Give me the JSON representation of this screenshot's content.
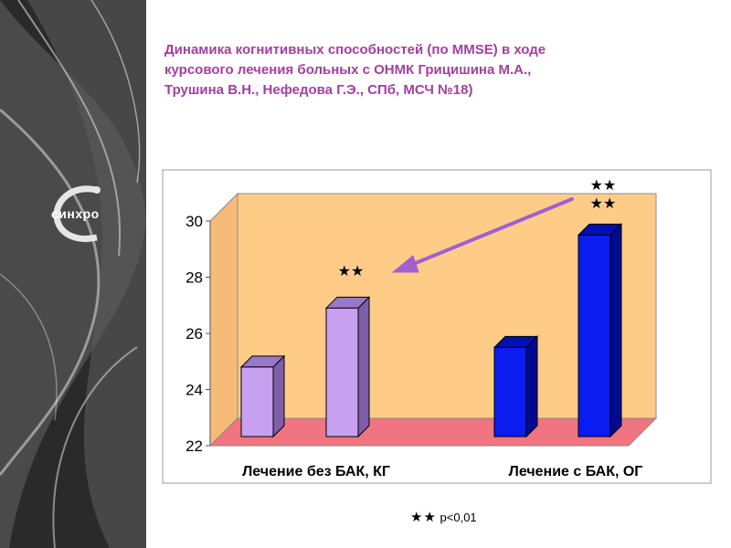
{
  "logo": {
    "icon": "sinhro-logo-icon",
    "text": "синхро"
  },
  "title_lines": [
    "Динамика когнитивных способностей (по MMSE) в ходе",
    "курсового лечения больных с ОНМК Грицишина М.А.,",
    "Трушина В.Н., Нефедова Г.Э., СПб, МСЧ №18)"
  ],
  "chart_data": {
    "type": "bar",
    "categories": [
      "Лечение без БАК, КГ",
      "Лечение с БАК, ОГ"
    ],
    "series": [
      {
        "values": [
          24.8,
          25.5
        ],
        "colors": [
          "#c8a0f0",
          "#0a1cf0"
        ]
      },
      {
        "values": [
          26.9,
          29.5
        ],
        "colors": [
          "#c8a0f0",
          "#0a1cf0"
        ]
      }
    ],
    "ylim": [
      22,
      30
    ],
    "yticks": [
      "22",
      "24",
      "26",
      "28",
      "30"
    ],
    "significance": {
      "group1_stars": "★★",
      "group2_stars_top": "★★",
      "group2_stars_bottom": "★★"
    },
    "grid": false,
    "colors": {
      "plot_background": "#ffcc88",
      "frame_background": "#ffffff",
      "floor": "#f07580",
      "arrow": "#a060d0"
    }
  },
  "footnote": {
    "stars": "★★",
    "text": "p<0,01"
  }
}
